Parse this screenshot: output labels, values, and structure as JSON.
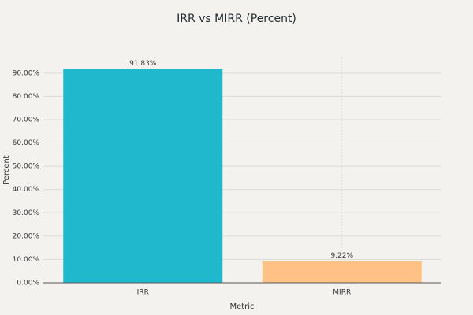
{
  "chart_data": {
    "type": "bar",
    "title": "IRR vs MIRR (Percent)",
    "x_label": "Metric",
    "y_label": "Percent",
    "categories": [
      "IRR",
      "MIRR"
    ],
    "values": [
      91.83,
      9.22
    ],
    "value_labels": [
      "91.83%",
      "9.22%"
    ],
    "colors": [
      "#1fb8cd",
      "#ffc185"
    ],
    "ylim": [
      0,
      96.7
    ],
    "yticks": [
      {
        "value": 0,
        "label": "0.00%"
      },
      {
        "value": 10,
        "label": "10.00%"
      },
      {
        "value": 20,
        "label": "20.00%"
      },
      {
        "value": 30,
        "label": "30.00%"
      },
      {
        "value": 40,
        "label": "40.00%"
      },
      {
        "value": 50,
        "label": "50.00%"
      },
      {
        "value": 60,
        "label": "60.00%"
      },
      {
        "value": 70,
        "label": "70.00%"
      },
      {
        "value": 80,
        "label": "80.00%"
      },
      {
        "value": 90,
        "label": "90.00%"
      }
    ],
    "grid": true
  }
}
